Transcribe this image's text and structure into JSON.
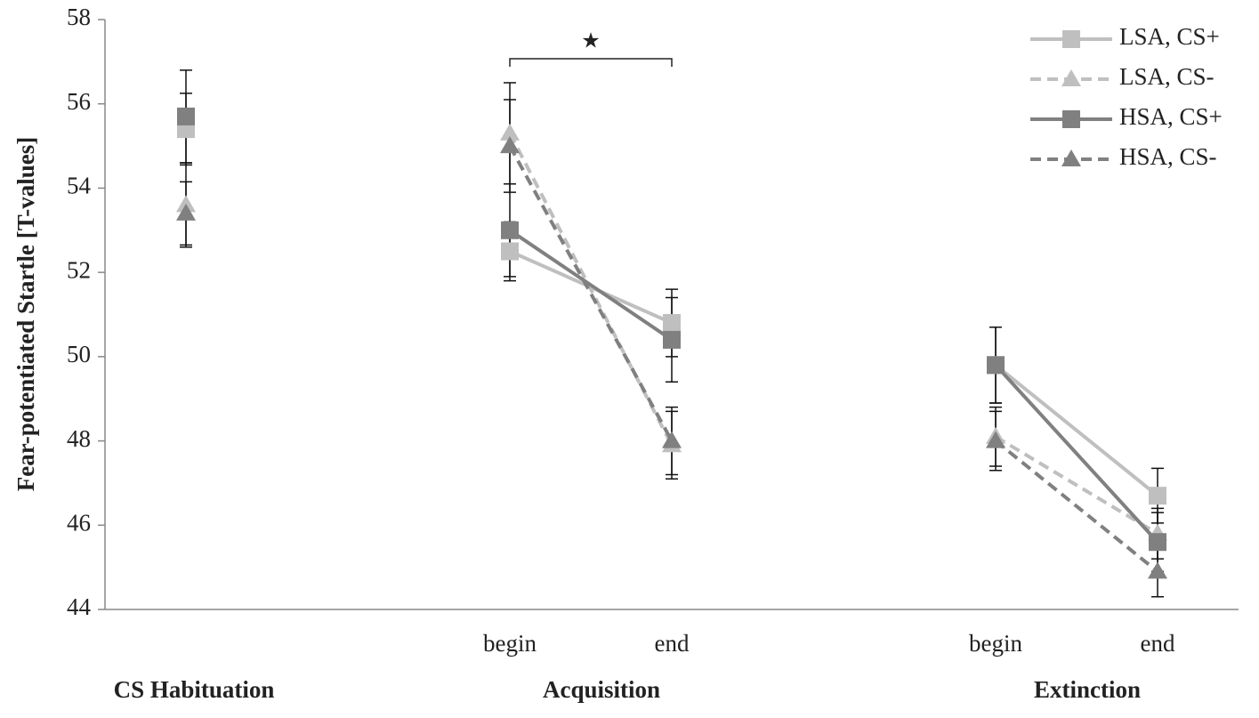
{
  "chart_data": {
    "type": "line",
    "y_label": "Fear-potentiated Startle [T-values]",
    "categories": [
      null,
      null,
      "begin",
      "end",
      null,
      "begin",
      "end"
    ],
    "group_labels": [
      "CS Habituation",
      "Acquisition",
      "Extinction"
    ],
    "significance_label": "★",
    "ylim": [
      44,
      58
    ],
    "yticks": [
      44,
      46,
      48,
      50,
      52,
      54,
      56,
      58
    ],
    "legend": "top-right",
    "series": [
      {
        "name": "LSA, CS+",
        "color": "#bfbfbf",
        "dashed": false,
        "marker": "square",
        "values": [
          55.4,
          null,
          52.5,
          50.8,
          null,
          49.8,
          46.7
        ],
        "errors": [
          0.85,
          null,
          0.7,
          0.8,
          null,
          0.9,
          0.65
        ]
      },
      {
        "name": "LSA, CS-",
        "color": "#bfbfbf",
        "dashed": true,
        "marker": "triangle",
        "values": [
          53.6,
          null,
          55.3,
          47.9,
          null,
          48.1,
          45.8
        ],
        "errors": [
          1.0,
          null,
          1.2,
          0.8,
          null,
          0.7,
          0.6
        ]
      },
      {
        "name": "HSA, CS+",
        "color": "#808080",
        "dashed": false,
        "marker": "square",
        "values": [
          55.7,
          null,
          53.0,
          50.4,
          null,
          49.8,
          45.6
        ],
        "errors": [
          1.1,
          null,
          1.1,
          1.0,
          null,
          0.9,
          0.7
        ]
      },
      {
        "name": "HSA, CS-",
        "color": "#808080",
        "dashed": true,
        "marker": "triangle",
        "values": [
          53.4,
          null,
          55.0,
          48.0,
          null,
          48.0,
          44.9
        ],
        "errors": [
          0.75,
          null,
          1.1,
          0.8,
          null,
          0.7,
          0.6
        ]
      }
    ]
  }
}
